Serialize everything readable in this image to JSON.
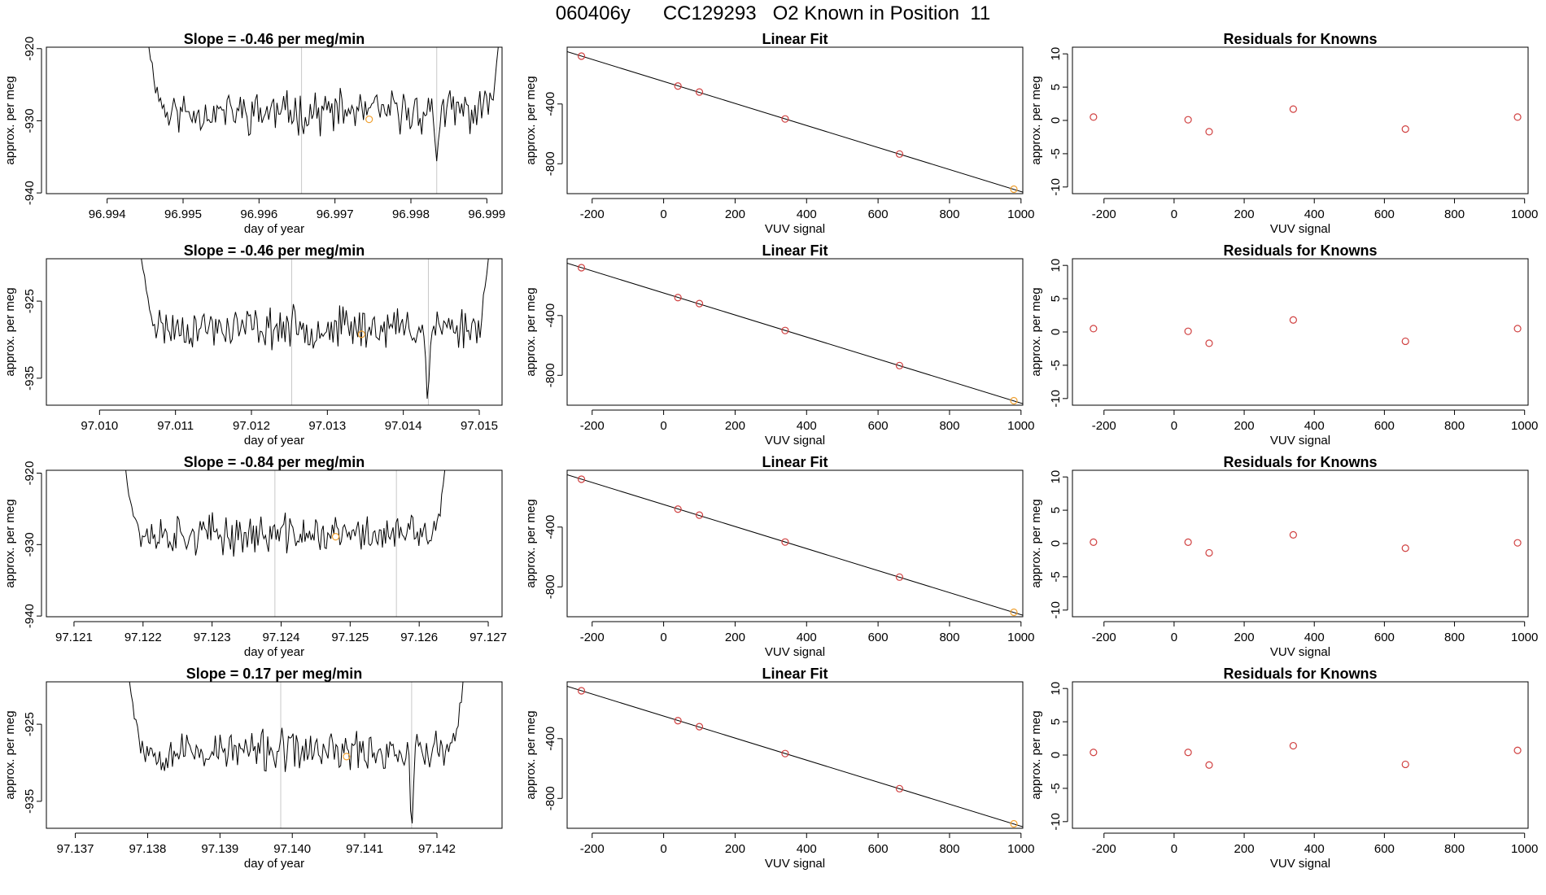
{
  "page": {
    "title": "060406y      CC129293   O2 Known in Position  11"
  },
  "chart_data": [
    {
      "type": "line",
      "row": 0,
      "col": 0,
      "title": "Slope =  -0.46  per meg/min",
      "xlabel": "day of year",
      "ylabel": "approx. per meg",
      "xlim": [
        96.9932,
        96.9992
      ],
      "ylim": [
        -940.1,
        -919.8
      ],
      "xticks": [
        96.994,
        96.995,
        96.996,
        96.997,
        96.998,
        96.999
      ],
      "xtick_labels": [
        "96.994",
        "96.995",
        "96.996",
        "96.997",
        "96.998",
        "96.999"
      ],
      "yticks": [
        -940,
        -930,
        -920
      ],
      "ytick_labels": [
        "-940",
        "-930",
        "-920"
      ],
      "vlines": [
        96.99656,
        96.99834
      ],
      "trace": {
        "x_start": 96.99455,
        "x_end": 96.99915,
        "level": -928.8,
        "amplitude": 2.2,
        "seed": 11,
        "start": -919.8,
        "end": -919.8,
        "dips": [
          {
            "x": 96.99834,
            "value": -935.6
          }
        ]
      },
      "marker": {
        "x": 96.99745,
        "y": -929.8,
        "color": "#f0a030"
      }
    },
    {
      "type": "scatter",
      "row": 0,
      "col": 1,
      "title": "Linear Fit",
      "xlabel": "VUV signal",
      "ylabel": "approx. per meg",
      "xlim": [
        -270,
        1005
      ],
      "ylim": [
        -1000,
        -20
      ],
      "xticks": [
        -200,
        0,
        200,
        400,
        600,
        800,
        1000
      ],
      "xtick_labels": [
        "-200",
        "0",
        "200",
        "400",
        "600",
        "800",
        "1000"
      ],
      "yticks": [
        -800,
        -400
      ],
      "ytick_labels": [
        "-800",
        "-400"
      ],
      "fit_line": {
        "x": [
          -270,
          1005
        ],
        "y": [
          -50,
          -990
        ]
      },
      "points": [
        {
          "x": -230,
          "y": -80,
          "color": "#d04040"
        },
        {
          "x": 40,
          "y": -280,
          "color": "#d04040"
        },
        {
          "x": 100,
          "y": -320,
          "color": "#d04040"
        },
        {
          "x": 340,
          "y": -500,
          "color": "#d04040"
        },
        {
          "x": 660,
          "y": -735,
          "color": "#d04040"
        },
        {
          "x": 980,
          "y": -970,
          "color": "#f0a030"
        }
      ]
    },
    {
      "type": "scatter",
      "row": 0,
      "col": 2,
      "title": "Residuals for Knowns",
      "xlabel": "VUV signal",
      "ylabel": "approx. per meg",
      "xlim": [
        -290,
        1010
      ],
      "ylim": [
        -11,
        11
      ],
      "xticks": [
        -200,
        0,
        200,
        400,
        600,
        800,
        1000
      ],
      "xtick_labels": [
        "-200",
        "0",
        "200",
        "400",
        "600",
        "800",
        "1000"
      ],
      "yticks": [
        -10,
        -5,
        0,
        5,
        10
      ],
      "ytick_labels": [
        "-10",
        "-5",
        "0",
        "5",
        "10"
      ],
      "points": [
        {
          "x": -230,
          "y": 0.5,
          "color": "#d04040"
        },
        {
          "x": 40,
          "y": 0.1,
          "color": "#d04040"
        },
        {
          "x": 100,
          "y": -1.7,
          "color": "#d04040"
        },
        {
          "x": 340,
          "y": 1.7,
          "color": "#d04040"
        },
        {
          "x": 660,
          "y": -1.3,
          "color": "#d04040"
        },
        {
          "x": 980,
          "y": 0.5,
          "color": "#d04040"
        }
      ]
    },
    {
      "type": "line",
      "row": 1,
      "col": 0,
      "title": "Slope =  -0.46  per meg/min",
      "xlabel": "day of year",
      "ylabel": "approx. per meg",
      "xlim": [
        97.0093,
        97.0153
      ],
      "ylim": [
        -938.5,
        -919.5
      ],
      "xticks": [
        97.01,
        97.011,
        97.012,
        97.013,
        97.014,
        97.015
      ],
      "xtick_labels": [
        "97.010",
        "97.011",
        "97.012",
        "97.013",
        "97.014",
        "97.015"
      ],
      "yticks": [
        -935,
        -925
      ],
      "ytick_labels": [
        "-935",
        "-925"
      ],
      "vlines": [
        97.01253,
        97.01433
      ],
      "trace": {
        "x_start": 97.01055,
        "x_end": 97.01512,
        "level": -928.4,
        "amplitude": 2.0,
        "seed": 23,
        "start": -919.5,
        "end": -919.5,
        "dips": [
          {
            "x": 97.01432,
            "value": -938.0
          }
        ]
      },
      "marker": {
        "x": 97.01345,
        "y": -929.3,
        "color": "#f0a030"
      }
    },
    {
      "type": "scatter",
      "row": 1,
      "col": 1,
      "title": "Linear Fit",
      "xlabel": "VUV signal",
      "ylabel": "approx. per meg",
      "xlim": [
        -270,
        1005
      ],
      "ylim": [
        -1000,
        -20
      ],
      "xticks": [
        -200,
        0,
        200,
        400,
        600,
        800,
        1000
      ],
      "xtick_labels": [
        "-200",
        "0",
        "200",
        "400",
        "600",
        "800",
        "1000"
      ],
      "yticks": [
        -800,
        -400
      ],
      "ytick_labels": [
        "-800",
        "-400"
      ],
      "fit_line": {
        "x": [
          -270,
          1005
        ],
        "y": [
          -50,
          -990
        ]
      },
      "points": [
        {
          "x": -230,
          "y": -80,
          "color": "#d04040"
        },
        {
          "x": 40,
          "y": -280,
          "color": "#d04040"
        },
        {
          "x": 100,
          "y": -320,
          "color": "#d04040"
        },
        {
          "x": 340,
          "y": -500,
          "color": "#d04040"
        },
        {
          "x": 660,
          "y": -735,
          "color": "#d04040"
        },
        {
          "x": 980,
          "y": -970,
          "color": "#f0a030"
        }
      ]
    },
    {
      "type": "scatter",
      "row": 1,
      "col": 2,
      "title": "Residuals for Knowns",
      "xlabel": "VUV signal",
      "ylabel": "approx. per meg",
      "xlim": [
        -290,
        1010
      ],
      "ylim": [
        -11,
        11
      ],
      "xticks": [
        -200,
        0,
        200,
        400,
        600,
        800,
        1000
      ],
      "xtick_labels": [
        "-200",
        "0",
        "200",
        "400",
        "600",
        "800",
        "1000"
      ],
      "yticks": [
        -10,
        -5,
        0,
        5,
        10
      ],
      "ytick_labels": [
        "-10",
        "-5",
        "0",
        "5",
        "10"
      ],
      "points": [
        {
          "x": -230,
          "y": 0.5,
          "color": "#d04040"
        },
        {
          "x": 40,
          "y": 0.1,
          "color": "#d04040"
        },
        {
          "x": 100,
          "y": -1.7,
          "color": "#d04040"
        },
        {
          "x": 340,
          "y": 1.8,
          "color": "#d04040"
        },
        {
          "x": 660,
          "y": -1.4,
          "color": "#d04040"
        },
        {
          "x": 980,
          "y": 0.5,
          "color": "#d04040"
        }
      ]
    },
    {
      "type": "line",
      "row": 2,
      "col": 0,
      "title": "Slope =  -0.84  per meg/min",
      "xlabel": "day of year",
      "ylabel": "approx. per meg",
      "xlim": [
        97.1206,
        97.1272
      ],
      "ylim": [
        -940.1,
        -919.6
      ],
      "xticks": [
        97.121,
        97.122,
        97.123,
        97.124,
        97.125,
        97.126,
        97.127
      ],
      "xtick_labels": [
        "97.121",
        "97.122",
        "97.123",
        "97.124",
        "97.125",
        "97.126",
        "97.127"
      ],
      "yticks": [
        -940,
        -930,
        -920
      ],
      "ytick_labels": [
        "-940",
        "-930",
        "-920"
      ],
      "vlines": [
        97.12391,
        97.12567
      ],
      "trace": {
        "x_start": 97.12175,
        "x_end": 97.12637,
        "level": -928.6,
        "amplitude": 2.1,
        "seed": 37,
        "start": -919.6,
        "end": -919.6,
        "dips": []
      },
      "marker": {
        "x": 97.12479,
        "y": -928.9,
        "color": "#f0a030"
      }
    },
    {
      "type": "scatter",
      "row": 2,
      "col": 1,
      "title": "Linear Fit",
      "xlabel": "VUV signal",
      "ylabel": "approx. per meg",
      "xlim": [
        -270,
        1005
      ],
      "ylim": [
        -1000,
        -20
      ],
      "xticks": [
        -200,
        0,
        200,
        400,
        600,
        800,
        1000
      ],
      "xtick_labels": [
        "-200",
        "0",
        "200",
        "400",
        "600",
        "800",
        "1000"
      ],
      "yticks": [
        -800,
        -400
      ],
      "ytick_labels": [
        "-800",
        "-400"
      ],
      "fit_line": {
        "x": [
          -270,
          1005
        ],
        "y": [
          -50,
          -990
        ]
      },
      "points": [
        {
          "x": -230,
          "y": -80,
          "color": "#d04040"
        },
        {
          "x": 40,
          "y": -280,
          "color": "#d04040"
        },
        {
          "x": 100,
          "y": -320,
          "color": "#d04040"
        },
        {
          "x": 340,
          "y": -500,
          "color": "#d04040"
        },
        {
          "x": 660,
          "y": -735,
          "color": "#d04040"
        },
        {
          "x": 980,
          "y": -970,
          "color": "#f0a030"
        }
      ]
    },
    {
      "type": "scatter",
      "row": 2,
      "col": 2,
      "title": "Residuals for Knowns",
      "xlabel": "VUV signal",
      "ylabel": "approx. per meg",
      "xlim": [
        -290,
        1010
      ],
      "ylim": [
        -11,
        11
      ],
      "xticks": [
        -200,
        0,
        200,
        400,
        600,
        800,
        1000
      ],
      "xtick_labels": [
        "-200",
        "0",
        "200",
        "400",
        "600",
        "800",
        "1000"
      ],
      "yticks": [
        -10,
        -5,
        0,
        5,
        10
      ],
      "ytick_labels": [
        "-10",
        "-5",
        "0",
        "5",
        "10"
      ],
      "points": [
        {
          "x": -230,
          "y": 0.2,
          "color": "#d04040"
        },
        {
          "x": 40,
          "y": 0.2,
          "color": "#d04040"
        },
        {
          "x": 100,
          "y": -1.4,
          "color": "#d04040"
        },
        {
          "x": 340,
          "y": 1.3,
          "color": "#d04040"
        },
        {
          "x": 660,
          "y": -0.7,
          "color": "#d04040"
        },
        {
          "x": 980,
          "y": 0.1,
          "color": "#d04040"
        }
      ]
    },
    {
      "type": "line",
      "row": 3,
      "col": 0,
      "title": "Slope =  0.17  per meg/min",
      "xlabel": "day of year",
      "ylabel": "approx. per meg",
      "xlim": [
        97.1366,
        97.1429
      ],
      "ylim": [
        -938.5,
        -919.5
      ],
      "xticks": [
        97.137,
        97.138,
        97.139,
        97.14,
        97.141,
        97.142
      ],
      "xtick_labels": [
        "97.137",
        "97.138",
        "97.139",
        "97.140",
        "97.141",
        "97.142"
      ],
      "yticks": [
        -935,
        -925
      ],
      "ytick_labels": [
        "-935",
        "-925"
      ],
      "vlines": [
        97.13984,
        97.14165
      ],
      "trace": {
        "x_start": 97.13775,
        "x_end": 97.14236,
        "level": -928.5,
        "amplitude": 2.0,
        "seed": 53,
        "start": -919.5,
        "end": -919.5,
        "dips": [
          {
            "x": 97.14165,
            "value": -938.5
          }
        ]
      },
      "marker": {
        "x": 97.14075,
        "y": -929.2,
        "color": "#f0a030"
      }
    },
    {
      "type": "scatter",
      "row": 3,
      "col": 1,
      "title": "Linear Fit",
      "xlabel": "VUV signal",
      "ylabel": "approx. per meg",
      "xlim": [
        -270,
        1005
      ],
      "ylim": [
        -1000,
        -20
      ],
      "xticks": [
        -200,
        0,
        200,
        400,
        600,
        800,
        1000
      ],
      "xtick_labels": [
        "-200",
        "0",
        "200",
        "400",
        "600",
        "800",
        "1000"
      ],
      "yticks": [
        -800,
        -400
      ],
      "ytick_labels": [
        "-800",
        "-400"
      ],
      "fit_line": {
        "x": [
          -270,
          1005
        ],
        "y": [
          -50,
          -990
        ]
      },
      "points": [
        {
          "x": -230,
          "y": -80,
          "color": "#d04040"
        },
        {
          "x": 40,
          "y": -280,
          "color": "#d04040"
        },
        {
          "x": 100,
          "y": -320,
          "color": "#d04040"
        },
        {
          "x": 340,
          "y": -500,
          "color": "#d04040"
        },
        {
          "x": 660,
          "y": -735,
          "color": "#d04040"
        },
        {
          "x": 980,
          "y": -970,
          "color": "#f0a030"
        }
      ]
    },
    {
      "type": "scatter",
      "row": 3,
      "col": 2,
      "title": "Residuals for Knowns",
      "xlabel": "VUV signal",
      "ylabel": "approx. per meg",
      "xlim": [
        -290,
        1010
      ],
      "ylim": [
        -11,
        11
      ],
      "xticks": [
        -200,
        0,
        200,
        400,
        600,
        800,
        1000
      ],
      "xtick_labels": [
        "-200",
        "0",
        "200",
        "400",
        "600",
        "800",
        "1000"
      ],
      "yticks": [
        -10,
        -5,
        0,
        5,
        10
      ],
      "ytick_labels": [
        "-10",
        "-5",
        "0",
        "5",
        "10"
      ],
      "points": [
        {
          "x": -230,
          "y": 0.4,
          "color": "#d04040"
        },
        {
          "x": 40,
          "y": 0.4,
          "color": "#d04040"
        },
        {
          "x": 100,
          "y": -1.5,
          "color": "#d04040"
        },
        {
          "x": 340,
          "y": 1.4,
          "color": "#d04040"
        },
        {
          "x": 660,
          "y": -1.4,
          "color": "#d04040"
        },
        {
          "x": 980,
          "y": 0.7,
          "color": "#d04040"
        }
      ]
    }
  ]
}
